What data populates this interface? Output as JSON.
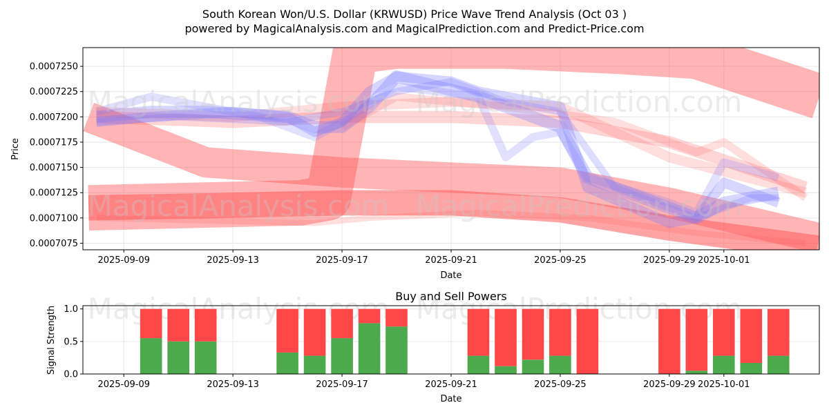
{
  "figure": {
    "title_line1": "South Korean Won/U.S. Dollar (KRWUSD) Price Wave Trend Analysis (Oct 03 )",
    "title_line2": "powered by MagicalAnalysis.com and MagicalPrediction.com and Predict-Price.com",
    "watermark_left": "MagicalAnalysis.com",
    "watermark_right": "MagicalPrediction.com"
  },
  "colors": {
    "red_band": "#ff5a5a",
    "blue_band": "#7878ff",
    "buy": "#4caa4c",
    "sell": "#ff4747",
    "axis": "#000000"
  },
  "chart_data": [
    {
      "type": "area",
      "title": "",
      "xlabel": "Date",
      "ylabel": "Price",
      "x_ticks": [
        "2025-09-09",
        "2025-09-13",
        "2025-09-17",
        "2025-09-21",
        "2025-09-25",
        "2025-09-29",
        "2025-10-01"
      ],
      "x_range": [
        "2025-09-07T12:00",
        "2025-10-04T12:00"
      ],
      "ylim": [
        0.00070685,
        0.00072685
      ],
      "y_ticks": [
        "0.0007075",
        "0.0007100",
        "0.0007125",
        "0.0007150",
        "0.0007175",
        "0.0007200",
        "0.0007225",
        "0.0007250"
      ],
      "y_tick_values": [
        0.0007075,
        0.00071,
        0.0007125,
        0.000715,
        0.0007175,
        0.00072,
        0.0007225,
        0.000725
      ],
      "grid": true,
      "red_bands": [
        {
          "name": "wave-band-1",
          "x": [
            "2025-09-07T17:00",
            "2025-09-15T12:00",
            "2025-09-16T12:00",
            "2025-09-17T12:00",
            "2025-09-19",
            "2025-09-23",
            "2025-09-27",
            "2025-09-30",
            "2025-10-04T12:00"
          ],
          "y": [
            0.000711,
            0.0007115,
            0.000712,
            0.0007265,
            0.000727,
            0.000727,
            0.0007265,
            0.000726,
            0.000722
          ],
          "width": 4.5e-06,
          "opacity": 0.45
        },
        {
          "name": "wave-band-2",
          "x": [
            "2025-09-07T17:00",
            "2025-09-12",
            "2025-09-17",
            "2025-09-21",
            "2025-09-25",
            "2025-09-29",
            "2025-10-04T12:00"
          ],
          "y": [
            0.00072,
            0.0007155,
            0.0007145,
            0.000714,
            0.0007135,
            0.0007115,
            0.000708
          ],
          "width": 3e-06,
          "opacity": 0.45
        },
        {
          "name": "wave-band-3",
          "x": [
            "2025-09-07T17:00",
            "2025-09-12",
            "2025-09-17",
            "2025-09-21",
            "2025-09-25",
            "2025-09-29",
            "2025-10-04T12:00"
          ],
          "y": [
            0.000711,
            0.0007112,
            0.0007115,
            0.0007115,
            0.0007108,
            0.000709,
            0.000707
          ],
          "width": 2.5e-06,
          "opacity": 0.55
        },
        {
          "name": "wave-band-4",
          "x": [
            "2025-09-08",
            "2025-09-13",
            "2025-09-17",
            "2025-09-21",
            "2025-09-25",
            "2025-09-29",
            "2025-10-04"
          ],
          "y": [
            0.00072,
            0.0007195,
            0.00072,
            0.00072,
            0.0007195,
            0.0007175,
            0.000713
          ],
          "width": 1.2e-06,
          "opacity": 0.25
        },
        {
          "name": "wave-band-5",
          "x": [
            "2025-09-08",
            "2025-09-13",
            "2025-09-17",
            "2025-09-21",
            "2025-09-25",
            "2025-09-29",
            "2025-10-04"
          ],
          "y": [
            0.0007205,
            0.00072,
            0.000721,
            0.0007215,
            0.000721,
            0.000716,
            0.0007125
          ],
          "width": 1e-06,
          "opacity": 0.2
        },
        {
          "name": "wave-band-6",
          "x": [
            "2025-09-17",
            "2025-09-19",
            "2025-09-23",
            "2025-09-27",
            "2025-09-30",
            "2025-10-01",
            "2025-10-04"
          ],
          "y": [
            0.000719,
            0.000722,
            0.000721,
            0.0007195,
            0.0007165,
            0.0007175,
            0.000712
          ],
          "width": 8e-07,
          "opacity": 0.2
        },
        {
          "name": "wave-band-7",
          "x": [
            "2025-09-08",
            "2025-09-16",
            "2025-09-18",
            "2025-09-22",
            "2025-09-26",
            "2025-09-30",
            "2025-10-04"
          ],
          "y": [
            0.00071,
            0.0007095,
            0.00071,
            0.0007105,
            0.00071,
            0.0007085,
            0.0007075
          ],
          "width": 6e-07,
          "opacity": 0.2
        }
      ],
      "blue_bands": [
        {
          "name": "blue-wave-1",
          "x": [
            "2025-09-08",
            "2025-09-10",
            "2025-09-12",
            "2025-09-15",
            "2025-09-16",
            "2025-09-17",
            "2025-09-18",
            "2025-09-19",
            "2025-09-22",
            "2025-09-23",
            "2025-09-25",
            "2025-09-26",
            "2025-09-29",
            "2025-09-30",
            "2025-10-01",
            "2025-10-03"
          ],
          "y": [
            0.00072,
            0.0007205,
            0.0007205,
            0.00072,
            0.000719,
            0.000719,
            0.000721,
            0.000724,
            0.000722,
            0.000721,
            0.000719,
            0.000714,
            0.000711,
            0.00071,
            0.0007115,
            0.0007125
          ],
          "width": 1.2e-06,
          "opacity": 0.3
        },
        {
          "name": "blue-wave-2",
          "x": [
            "2025-09-08",
            "2025-09-10",
            "2025-09-13",
            "2025-09-15",
            "2025-09-16",
            "2025-09-17",
            "2025-09-18",
            "2025-09-19",
            "2025-09-21",
            "2025-09-22",
            "2025-09-25",
            "2025-09-26",
            "2025-09-29",
            "2025-09-30",
            "2025-10-01",
            "2025-10-03"
          ],
          "y": [
            0.0007195,
            0.00072,
            0.0007205,
            0.00072,
            0.0007185,
            0.0007195,
            0.0007225,
            0.000724,
            0.0007235,
            0.0007225,
            0.000721,
            0.000713,
            0.0007095,
            0.00071,
            0.0007135,
            0.0007115
          ],
          "width": 1e-06,
          "opacity": 0.3
        },
        {
          "name": "blue-wave-3",
          "x": [
            "2025-09-08",
            "2025-09-10",
            "2025-09-14",
            "2025-09-16",
            "2025-09-17",
            "2025-09-19",
            "2025-09-22",
            "2025-09-23",
            "2025-09-24",
            "2025-09-25",
            "2025-09-26",
            "2025-09-29",
            "2025-09-30",
            "2025-10-01",
            "2025-10-03"
          ],
          "y": [
            0.0007205,
            0.000722,
            0.00072,
            0.000718,
            0.0007195,
            0.000723,
            0.000722,
            0.000716,
            0.000718,
            0.0007185,
            0.000714,
            0.0007115,
            0.0007105,
            0.0007155,
            0.000714
          ],
          "width": 8e-07,
          "opacity": 0.22
        },
        {
          "name": "blue-wave-4",
          "x": [
            "2025-09-08",
            "2025-09-11",
            "2025-09-15",
            "2025-09-17",
            "2025-09-19",
            "2025-09-21",
            "2025-09-23",
            "2025-09-25",
            "2025-09-27",
            "2025-09-30",
            "2025-10-02",
            "2025-10-03"
          ],
          "y": [
            0.0007195,
            0.00072,
            0.0007195,
            0.0007205,
            0.0007225,
            0.0007235,
            0.0007215,
            0.0007205,
            0.000713,
            0.00071,
            0.000712,
            0.000712
          ],
          "width": 7e-07,
          "opacity": 0.25
        }
      ]
    },
    {
      "type": "bar",
      "title": "Buy and Sell Powers",
      "xlabel": "Date",
      "ylabel": "Signal Strength",
      "x_ticks": [
        "2025-09-09",
        "2025-09-13",
        "2025-09-17",
        "2025-09-21",
        "2025-09-25",
        "2025-09-29",
        "2025-10-01"
      ],
      "x_range": [
        "2025-09-07T12:00",
        "2025-10-04T12:00"
      ],
      "ylim": [
        0,
        1.05
      ],
      "y_ticks": [
        "0.0",
        "0.5",
        "1.0"
      ],
      "y_tick_values": [
        0,
        0.5,
        1
      ],
      "grid": true,
      "dates": [
        "2025-09-10",
        "2025-09-11",
        "2025-09-12",
        "2025-09-15",
        "2025-09-16",
        "2025-09-17",
        "2025-09-18",
        "2025-09-19",
        "2025-09-22",
        "2025-09-23",
        "2025-09-24",
        "2025-09-25",
        "2025-09-26",
        "2025-09-29",
        "2025-09-30",
        "2025-10-01",
        "2025-10-02",
        "2025-10-03"
      ],
      "series": [
        {
          "name": "buy",
          "values": [
            0.55,
            0.5,
            0.5,
            0.33,
            0.28,
            0.55,
            0.78,
            0.73,
            0.28,
            0.12,
            0.22,
            0.28,
            0.0,
            0.0,
            0.05,
            0.28,
            0.17,
            0.28
          ]
        },
        {
          "name": "sell",
          "values": [
            0.45,
            0.5,
            0.5,
            0.67,
            0.72,
            0.45,
            0.22,
            0.27,
            0.72,
            0.88,
            0.78,
            0.72,
            1.0,
            1.0,
            0.95,
            0.72,
            0.83,
            0.72
          ]
        }
      ]
    }
  ]
}
